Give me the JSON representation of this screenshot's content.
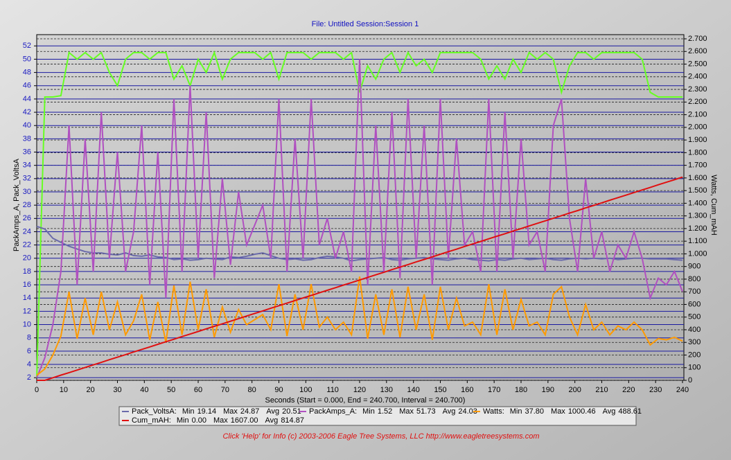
{
  "chart_data": {
    "type": "line",
    "title": "File: Untitled   Session:Session 1",
    "xlabel": "Seconds (Start = 0.000,  End = 240.700,  Interval =  240.700)",
    "ylabel": "PackAmps_A, Pack_VoltsA",
    "y2label": "Watts, Cum_mAH",
    "footer": "Click 'Help' for Info  (c) 2003-2006 Eagle Tree Systems, LLC      http://www.eagletreesystems.com",
    "stat_labels": [
      "Min",
      "Max",
      "Avg"
    ],
    "grid": true,
    "xlim": [
      0,
      240
    ],
    "xticks": [
      0,
      10,
      20,
      30,
      40,
      50,
      60,
      70,
      80,
      90,
      100,
      110,
      120,
      130,
      140,
      150,
      160,
      170,
      180,
      190,
      200,
      210,
      220,
      230,
      240
    ],
    "ylim": [
      1.6,
      53.7
    ],
    "yticks": [
      2,
      4,
      6,
      8,
      10,
      12,
      14,
      16,
      18,
      20,
      22,
      24,
      26,
      28,
      30,
      32,
      34,
      36,
      38,
      40,
      42,
      44,
      46,
      48,
      50,
      52
    ],
    "y2lim": [
      0,
      2733
    ],
    "y2ticks": [
      0,
      100,
      200,
      300,
      400,
      500,
      600,
      700,
      800,
      900,
      {
        "value": 1000,
        "label": "1.000"
      },
      {
        "value": 1100,
        "label": "1.100"
      },
      {
        "value": 1200,
        "label": "1.200"
      },
      {
        "value": 1300,
        "label": "1.300"
      },
      {
        "value": 1400,
        "label": "1.400"
      },
      {
        "value": 1500,
        "label": "1.500"
      },
      {
        "value": 1600,
        "label": "1.600"
      },
      {
        "value": 1700,
        "label": "1.700"
      },
      {
        "value": 1800,
        "label": "1.800"
      },
      {
        "value": 1900,
        "label": "1.900"
      },
      {
        "value": 2000,
        "label": "2.000"
      },
      {
        "value": 2100,
        "label": "2.100"
      },
      {
        "value": 2200,
        "label": "2.200"
      },
      {
        "value": 2300,
        "label": "2.300"
      },
      {
        "value": 2400,
        "label": "2.400"
      },
      {
        "value": 2500,
        "label": "2.500"
      },
      {
        "value": 2600,
        "label": "2.600"
      },
      {
        "value": 2700,
        "label": "2.700"
      }
    ],
    "x": [
      0,
      3,
      6,
      9,
      12,
      15,
      18,
      21,
      24,
      27,
      30,
      33,
      36,
      39,
      42,
      45,
      48,
      51,
      54,
      57,
      60,
      63,
      66,
      69,
      72,
      75,
      78,
      81,
      84,
      87,
      90,
      93,
      96,
      99,
      102,
      105,
      108,
      111,
      114,
      117,
      120,
      123,
      126,
      129,
      132,
      135,
      138,
      141,
      144,
      147,
      150,
      153,
      156,
      159,
      162,
      165,
      168,
      171,
      174,
      177,
      180,
      183,
      186,
      189,
      192,
      195,
      198,
      201,
      204,
      207,
      210,
      213,
      216,
      219,
      222,
      225,
      228,
      231,
      234,
      237,
      240
    ],
    "series": [
      {
        "color": "#66ff22",
        "values": [
          2,
          44.3,
          44.3,
          44.5,
          51,
          50,
          51,
          50,
          51,
          48,
          46,
          50,
          51,
          51,
          50,
          51,
          51,
          47,
          49,
          46,
          50,
          48,
          51,
          47,
          50,
          51,
          51,
          51,
          50,
          51,
          47,
          51,
          51,
          51,
          50,
          51,
          51,
          51,
          50,
          51,
          45,
          49,
          47,
          50,
          51,
          48,
          51,
          49,
          50,
          48,
          51,
          51,
          51,
          51,
          51,
          50,
          47,
          49,
          47,
          50,
          48,
          51,
          50,
          51,
          50,
          45,
          49,
          51,
          51,
          50,
          51,
          51,
          51,
          51,
          51,
          50,
          45,
          44.3,
          44.3,
          44.3,
          44.3
        ]
      },
      {
        "name": "Pack_VoltsA:",
        "color": "#6a6aaa",
        "stats": [
          "19.14",
          "24.87",
          "20.51"
        ],
        "values": [
          24.8,
          24.4,
          23.0,
          22.4,
          21.8,
          21.4,
          21.0,
          20.8,
          20.8,
          20.6,
          20.5,
          20.8,
          20.4,
          20.3,
          20.5,
          20.2,
          20.1,
          19.8,
          19.9,
          19.7,
          19.8,
          20.0,
          19.9,
          19.8,
          20.2,
          20.1,
          20.3,
          20.6,
          20.8,
          20.4,
          20.0,
          19.8,
          19.9,
          19.7,
          19.8,
          20.1,
          20.3,
          20.2,
          20.0,
          19.6,
          19.8,
          19.9,
          20.0,
          20.1,
          19.8,
          19.7,
          19.9,
          20.0,
          20.1,
          19.9,
          19.8,
          19.7,
          19.9,
          20.0,
          19.8,
          19.7,
          19.6,
          19.8,
          19.7,
          19.9,
          20.0,
          19.8,
          19.9,
          20.0,
          19.8,
          19.7,
          19.9,
          20.0,
          19.9,
          20.0,
          19.9,
          20.0,
          19.8,
          19.9,
          20.0,
          20.0,
          19.9,
          19.9,
          19.9,
          19.8,
          19.7
        ]
      },
      {
        "name": "PackAmps_A:",
        "color": "#b050c0",
        "stats": [
          "1.52",
          "51.73",
          "24.03"
        ],
        "values": [
          2,
          5,
          10,
          18,
          40,
          16,
          38,
          18,
          42,
          20,
          36,
          18,
          24,
          40,
          16,
          36,
          14,
          44,
          18,
          46,
          20,
          42,
          17,
          32,
          19,
          30,
          22,
          25,
          28,
          20,
          44,
          18,
          38,
          20,
          44,
          22,
          26,
          20,
          24,
          18,
          50,
          16,
          40,
          18,
          42,
          17,
          44,
          20,
          40,
          16,
          44,
          20,
          38,
          22,
          24,
          18,
          44,
          18,
          42,
          20,
          38,
          22,
          24,
          18,
          40,
          44,
          26,
          18,
          32,
          20,
          24,
          18,
          22,
          20,
          24,
          20,
          14,
          17,
          16,
          18,
          15
        ]
      },
      {
        "name": "Watts:",
        "color": "#ff9a00",
        "axis": "y2",
        "stats": [
          "37.80",
          "1000.46",
          "488.61"
        ],
        "values": [
          40,
          90,
          200,
          350,
          700,
          330,
          650,
          360,
          700,
          400,
          620,
          360,
          470,
          680,
          320,
          620,
          300,
          750,
          360,
          780,
          400,
          720,
          340,
          580,
          380,
          560,
          440,
          480,
          520,
          400,
          760,
          350,
          680,
          400,
          760,
          420,
          500,
          400,
          460,
          360,
          820,
          330,
          680,
          360,
          720,
          340,
          740,
          400,
          680,
          320,
          740,
          400,
          650,
          430,
          460,
          360,
          760,
          360,
          720,
          400,
          640,
          430,
          460,
          360,
          680,
          740,
          500,
          360,
          600,
          400,
          460,
          360,
          430,
          400,
          460,
          400,
          280,
          330,
          320,
          340,
          310
        ]
      },
      {
        "name": "Cum_mAH:",
        "color": "#e01010",
        "axis": "y2",
        "stats": [
          "0.00",
          "1607.00",
          "814.87"
        ],
        "values": [
          0,
          0,
          20,
          41,
          61,
          81,
          102,
          122,
          142,
          163,
          183,
          203,
          224,
          244,
          264,
          285,
          305,
          325,
          346,
          366,
          386,
          407,
          427,
          447,
          467,
          488,
          508,
          529,
          549,
          570,
          590,
          610,
          631,
          651,
          671,
          692,
          712,
          732,
          753,
          773,
          793,
          814,
          834,
          854,
          875,
          895,
          915,
          936,
          956,
          976,
          997,
          1017,
          1037,
          1058,
          1078,
          1098,
          1119,
          1139,
          1159,
          1180,
          1200,
          1220,
          1241,
          1261,
          1281,
          1302,
          1322,
          1342,
          1363,
          1383,
          1403,
          1424,
          1444,
          1464,
          1485,
          1505,
          1525,
          1546,
          1566,
          1586,
          1607
        ]
      }
    ]
  }
}
